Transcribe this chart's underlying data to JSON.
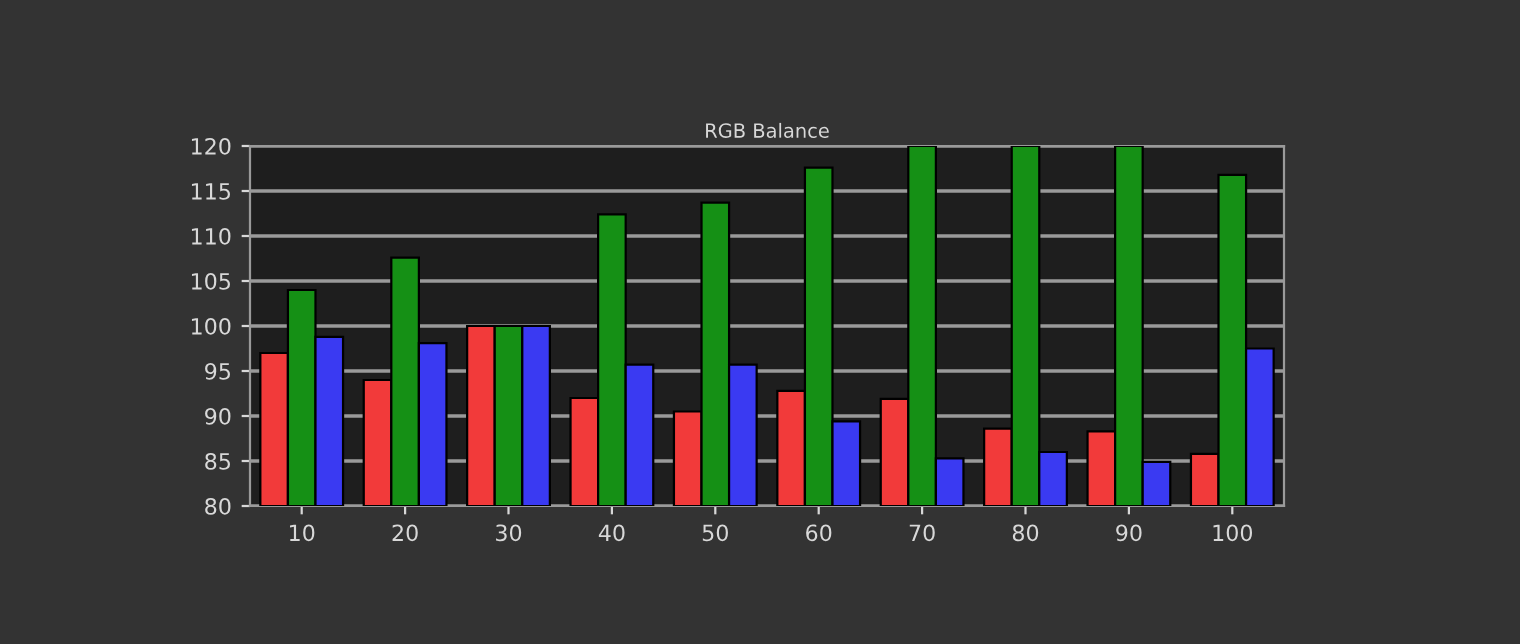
{
  "chart_data": {
    "type": "bar",
    "title": "RGB Balance",
    "categories": [
      "10",
      "20",
      "30",
      "40",
      "50",
      "60",
      "70",
      "80",
      "90",
      "100"
    ],
    "series": [
      {
        "color": "#f23a3a",
        "values": [
          97,
          94,
          100,
          92,
          90.5,
          92.8,
          91.9,
          88.6,
          88.3,
          85.8
        ]
      },
      {
        "color": "#159015",
        "values": [
          104,
          107.6,
          100,
          112.4,
          113.7,
          117.6,
          120,
          120,
          120,
          116.8
        ]
      },
      {
        "color": "#3a3af2",
        "values": [
          98.8,
          98.1,
          100,
          95.7,
          95.7,
          89.4,
          85.3,
          86,
          84.9,
          97.5
        ]
      }
    ],
    "ylim": [
      80,
      120
    ],
    "yticks": [
      80,
      85,
      90,
      95,
      100,
      105,
      110,
      115,
      120
    ],
    "grid": "y"
  }
}
